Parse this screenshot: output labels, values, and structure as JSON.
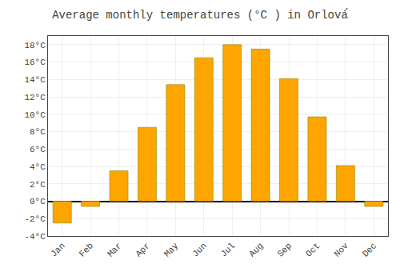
{
  "chart_data": {
    "type": "bar",
    "title": "Average monthly temperatures (°C ) in Orlová́",
    "categories": [
      "Jan",
      "Feb",
      "Mar",
      "Apr",
      "May",
      "Jun",
      "Jul",
      "Aug",
      "Sep",
      "Oct",
      "Nov",
      "Dec"
    ],
    "values": [
      -2.5,
      -0.6,
      3.5,
      8.5,
      13.4,
      16.5,
      18.0,
      17.5,
      14.1,
      9.7,
      4.1,
      -0.6
    ],
    "color": "#FFA500",
    "ylim": [
      -4,
      19
    ],
    "yticks": [
      {
        "value": -4,
        "label": "-4°C"
      },
      {
        "value": -2,
        "label": "-2°C"
      },
      {
        "value": 0,
        "label": "0°C"
      },
      {
        "value": 2,
        "label": "2°C"
      },
      {
        "value": 4,
        "label": "4°C"
      },
      {
        "value": 6,
        "label": "6°C"
      },
      {
        "value": 8,
        "label": "8°C"
      },
      {
        "value": 10,
        "label": "10°C"
      },
      {
        "value": 12,
        "label": "12°C"
      },
      {
        "value": 14,
        "label": "14°C"
      },
      {
        "value": 16,
        "label": "16°C"
      },
      {
        "value": 18,
        "label": "18°C"
      }
    ],
    "grid": true
  }
}
